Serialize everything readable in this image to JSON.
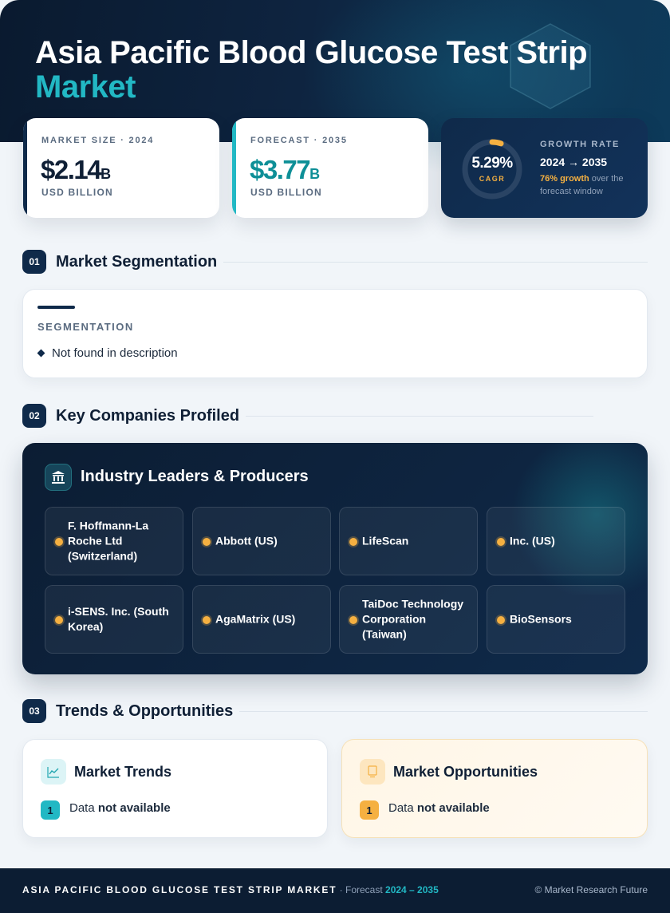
{
  "header": {
    "title_line1": "Asia Pacific Blood Glucose Test Strip",
    "title_line2": "Market"
  },
  "stats": {
    "market_size": {
      "label": "MARKET SIZE · 2024",
      "value": "$2.14",
      "suffix": "B",
      "unit": "USD BILLION"
    },
    "forecast": {
      "label": "FORECAST · 2035",
      "value": "$3.77",
      "suffix": "B",
      "unit": "USD BILLION"
    },
    "growth": {
      "cagr_value": "5.29%",
      "cagr_label": "CAGR",
      "label": "GROWTH RATE",
      "years": "2024 → 2035",
      "note_highlight": "76% growth",
      "note_rest": " over the forecast window",
      "ring_fraction": 0.0529
    }
  },
  "sections": {
    "segmentation": {
      "num": "01",
      "title": "Market Segmentation"
    },
    "companies": {
      "num": "02",
      "title": "Key Companies Profiled"
    },
    "trends": {
      "num": "03",
      "title": "Trends & Opportunities"
    }
  },
  "segmentation": {
    "label": "SEGMENTATION",
    "items": [
      "Not found in description"
    ]
  },
  "companies": {
    "panel_title": "Industry Leaders & Producers",
    "list": [
      "F. Hoffmann-La Roche Ltd (Switzerland)",
      "Abbott (US)",
      "LifeScan",
      "Inc. (US)",
      "i-SENS. Inc. (South Korea)",
      "AgaMatrix (US)",
      "TaiDoc Technology Corporation (Taiwan)",
      "BioSensors"
    ]
  },
  "trends": {
    "title": "Market Trends",
    "badge": "1",
    "text_prefix": "Data ",
    "text_bold": "not available"
  },
  "opportunities": {
    "title": "Market Opportunities",
    "badge": "1",
    "text_prefix": "Data ",
    "text_bold": "not available"
  },
  "footer": {
    "brand": "ASIA PACIFIC BLOOD GLUCOSE TEST STRIP MARKET",
    "forecast_label": " · Forecast ",
    "years": "2024 – 2035",
    "copyright": "© Market Research Future"
  },
  "colors": {
    "navy": "#0f2a4a",
    "teal": "#22b8c4",
    "amber": "#f5b041",
    "background": "#f1f5f9"
  }
}
